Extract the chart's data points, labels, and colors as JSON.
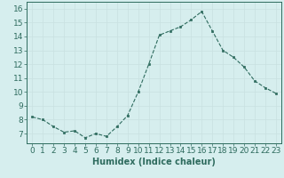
{
  "x": [
    0,
    1,
    2,
    3,
    4,
    5,
    6,
    7,
    8,
    9,
    10,
    11,
    12,
    13,
    14,
    15,
    16,
    17,
    18,
    19,
    20,
    21,
    22,
    23
  ],
  "y": [
    8.2,
    8.0,
    7.5,
    7.1,
    7.2,
    6.7,
    7.0,
    6.8,
    7.5,
    8.3,
    10.0,
    12.0,
    14.1,
    14.4,
    14.7,
    15.2,
    15.8,
    14.4,
    13.0,
    12.5,
    11.8,
    10.8,
    10.3,
    9.9
  ],
  "xlabel": "Humidex (Indice chaleur)",
  "xlim": [
    -0.5,
    23.5
  ],
  "ylim": [
    6.3,
    16.5
  ],
  "yticks": [
    7,
    8,
    9,
    10,
    11,
    12,
    13,
    14,
    15,
    16
  ],
  "xticks": [
    0,
    1,
    2,
    3,
    4,
    5,
    6,
    7,
    8,
    9,
    10,
    11,
    12,
    13,
    14,
    15,
    16,
    17,
    18,
    19,
    20,
    21,
    22,
    23
  ],
  "line_color": "#2e6b5e",
  "marker_color": "#2e6b5e",
  "bg_color": "#d6eeee",
  "grid_color": "#c8e0e0",
  "axis_color": "#2e6b5e",
  "label_color": "#2e6b5e",
  "label_fontsize": 7,
  "tick_fontsize": 6.5
}
